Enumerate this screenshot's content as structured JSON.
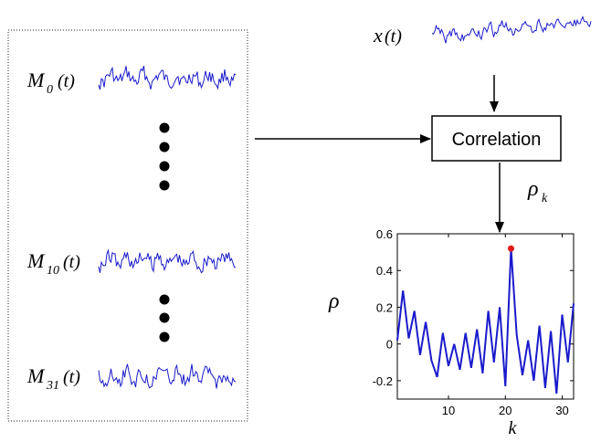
{
  "signals": {
    "input": {
      "symbol": "x",
      "arg": "(t)"
    },
    "models": [
      {
        "symbol": "M",
        "sub": "0",
        "arg": "(t)"
      },
      {
        "symbol": "M",
        "sub": "10",
        "arg": "(t)"
      },
      {
        "symbol": "M",
        "sub": "31",
        "arg": "(t)"
      }
    ]
  },
  "process": {
    "label": "Correlation",
    "output_symbol": "ρ",
    "output_sub": "k"
  },
  "colors": {
    "waveform": "#1a1acc",
    "peak_marker": "#e41a1c",
    "line": "#000000"
  },
  "chart_data": {
    "type": "line",
    "title": "",
    "xlabel": "k",
    "ylabel": "ρ",
    "xlim": [
      1,
      32
    ],
    "ylim": [
      -0.3,
      0.6
    ],
    "xticks": [
      10,
      20,
      30
    ],
    "yticks": [
      -0.2,
      0,
      0.2,
      0.4,
      0.6
    ],
    "ytick_labels": [
      "-0.2",
      "0",
      "0.2",
      "0.4",
      "0.6"
    ],
    "series": [
      {
        "x": [
          1,
          2,
          3,
          4,
          5,
          6,
          7,
          8,
          9,
          10,
          11,
          12,
          13,
          14,
          15,
          16,
          17,
          18,
          19,
          20,
          21,
          22,
          23,
          24,
          25,
          26,
          27,
          28,
          29,
          30,
          31,
          32
        ],
        "y": [
          0.02,
          0.29,
          0.03,
          0.18,
          -0.06,
          0.12,
          -0.09,
          -0.18,
          0.06,
          -0.12,
          0.0,
          -0.14,
          0.06,
          -0.13,
          0.08,
          -0.16,
          0.18,
          -0.1,
          0.2,
          -0.23,
          0.52,
          0.05,
          -0.17,
          0.02,
          -0.2,
          0.1,
          -0.24,
          0.07,
          -0.27,
          0.16,
          -0.1,
          0.22
        ]
      }
    ],
    "peak": {
      "x": 21,
      "y": 0.52
    }
  }
}
